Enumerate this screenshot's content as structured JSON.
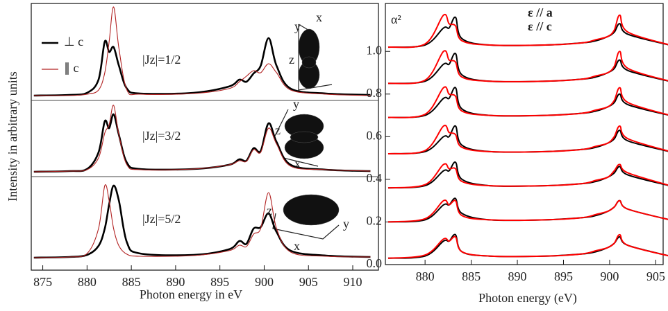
{
  "chart_data": [
    {
      "type": "line",
      "xlabel": "Photon energy in eV",
      "ylabel": "Intensity in arbitrary units",
      "xlim": [
        873.7,
        912.9
      ],
      "ylim": [
        0,
        3.85
      ],
      "xticks": [
        875,
        880,
        885,
        890,
        895,
        900,
        905,
        910
      ],
      "x": [
        874,
        878,
        880,
        881.3,
        882,
        882.5,
        883,
        883.6,
        884.5,
        886,
        892,
        896,
        897.2,
        898,
        898.8,
        899.6,
        900.5,
        901.4,
        903,
        907,
        912
      ],
      "series": [
        {
          "name": "⊥ c",
          "color": "#000000",
          "values": [
            [
              2.52,
              2.53,
              2.56,
              2.75,
              3.3,
              3.15,
              3.22,
              2.95,
              2.62,
              2.55,
              2.56,
              2.65,
              2.75,
              2.72,
              2.84,
              2.95,
              3.35,
              2.95,
              2.62,
              2.55,
              2.53
            ],
            [
              1.42,
              1.43,
              1.46,
              1.7,
              2.15,
              2.05,
              2.25,
              1.95,
              1.55,
              1.46,
              1.46,
              1.52,
              1.6,
              1.58,
              1.76,
              1.72,
              2.12,
              1.85,
              1.52,
              1.45,
              1.43
            ],
            [
              0.18,
              0.19,
              0.22,
              0.35,
              0.6,
              0.95,
              1.22,
              1.0,
              0.4,
              0.24,
              0.22,
              0.3,
              0.42,
              0.38,
              0.6,
              0.62,
              0.82,
              0.55,
              0.28,
              0.21,
              0.19
            ]
          ]
        },
        {
          "name": "∥ c",
          "color": "#b22222",
          "values": [
            [
              2.52,
              2.52,
              2.54,
              2.6,
              2.85,
              3.3,
              3.8,
              3.2,
              2.6,
              2.54,
              2.55,
              2.62,
              2.72,
              2.8,
              2.88,
              2.85,
              2.98,
              2.85,
              2.6,
              2.54,
              2.52
            ],
            [
              1.42,
              1.43,
              1.45,
              1.62,
              1.98,
              2.1,
              2.38,
              1.95,
              1.52,
              1.45,
              1.46,
              1.52,
              1.58,
              1.57,
              1.74,
              1.7,
              2.05,
              1.82,
              1.5,
              1.45,
              1.43
            ],
            [
              0.18,
              0.19,
              0.24,
              0.6,
              1.22,
              1.0,
              0.6,
              0.35,
              0.23,
              0.2,
              0.21,
              0.28,
              0.36,
              0.34,
              0.52,
              0.6,
              1.12,
              0.6,
              0.26,
              0.2,
              0.19
            ]
          ]
        }
      ],
      "annotations": [
        {
          "text": "|Jz|=1/2",
          "inset_labels": [
            "y",
            "x",
            "z"
          ]
        },
        {
          "text": "|Jz|=3/2",
          "inset_labels": [
            "y",
            "z",
            "x"
          ]
        },
        {
          "text": "|Jz|=5/2",
          "inset_labels": [
            "z",
            "x",
            "y"
          ]
        }
      ]
    },
    {
      "type": "line",
      "xlabel": "Photon energy (eV)",
      "ylabel": "α²",
      "xlim": [
        875.7,
        905.8
      ],
      "ylim": [
        0,
        1.225
      ],
      "xticks": [
        880,
        885,
        890,
        895,
        900,
        905
      ],
      "yticks": [
        {
          "value": 0,
          "label": "0.0"
        },
        {
          "value": 0.2,
          "label": "0.2"
        },
        {
          "value": 0.4,
          "label": "0.4"
        },
        {
          "value": 0.6,
          "label": "0.6"
        },
        {
          "value": 0.8,
          "label": "0.8"
        },
        {
          "value": 1.0,
          "label": "1.0"
        }
      ],
      "x": [
        876,
        880,
        882,
        882.6,
        883.3,
        884,
        887,
        893,
        897,
        898.5,
        899.8,
        900.5,
        901.1,
        902,
        907
      ],
      "series": [
        {
          "name": "ε // a",
          "color": "#000000",
          "values": [
            [
              1.02,
              1.03,
              1.11,
              1.11,
              1.16,
              1.06,
              1.03,
              1.03,
              1.04,
              1.05,
              1.07,
              1.09,
              1.13,
              1.08,
              1.025
            ],
            [
              0.85,
              0.86,
              0.94,
              0.94,
              0.99,
              0.89,
              0.86,
              0.86,
              0.87,
              0.88,
              0.9,
              0.92,
              0.96,
              0.91,
              0.855
            ],
            [
              0.69,
              0.7,
              0.78,
              0.78,
              0.83,
              0.73,
              0.7,
              0.7,
              0.71,
              0.72,
              0.74,
              0.76,
              0.8,
              0.75,
              0.695
            ],
            [
              0.52,
              0.53,
              0.6,
              0.6,
              0.65,
              0.56,
              0.53,
              0.53,
              0.54,
              0.55,
              0.57,
              0.59,
              0.63,
              0.58,
              0.525
            ],
            [
              0.36,
              0.37,
              0.44,
              0.44,
              0.48,
              0.4,
              0.37,
              0.37,
              0.38,
              0.39,
              0.41,
              0.43,
              0.46,
              0.42,
              0.365
            ],
            [
              0.2,
              0.21,
              0.28,
              0.28,
              0.31,
              0.24,
              0.21,
              0.21,
              0.22,
              0.23,
              0.25,
              0.27,
              0.3,
              0.26,
              0.205
            ],
            [
              0.03,
              0.04,
              0.11,
              0.11,
              0.14,
              0.06,
              0.04,
              0.04,
              0.05,
              0.06,
              0.08,
              0.1,
              0.13,
              0.09,
              0.035
            ]
          ]
        },
        {
          "name": "ε // c",
          "color": "#ff0000",
          "values": [
            [
              1.02,
              1.035,
              1.17,
              1.13,
              1.12,
              1.05,
              1.03,
              1.03,
              1.04,
              1.055,
              1.07,
              1.1,
              1.17,
              1.09,
              1.025
            ],
            [
              0.85,
              0.865,
              1.0,
              0.96,
              0.95,
              0.88,
              0.86,
              0.86,
              0.87,
              0.885,
              0.9,
              0.93,
              1.0,
              0.92,
              0.855
            ],
            [
              0.69,
              0.705,
              0.83,
              0.8,
              0.79,
              0.72,
              0.7,
              0.7,
              0.71,
              0.725,
              0.74,
              0.77,
              0.83,
              0.76,
              0.695
            ],
            [
              0.52,
              0.535,
              0.65,
              0.62,
              0.61,
              0.55,
              0.53,
              0.53,
              0.54,
              0.555,
              0.57,
              0.6,
              0.65,
              0.59,
              0.525
            ],
            [
              0.36,
              0.375,
              0.47,
              0.45,
              0.45,
              0.39,
              0.37,
              0.37,
              0.38,
              0.395,
              0.41,
              0.44,
              0.47,
              0.43,
              0.365
            ],
            [
              0.2,
              0.215,
              0.3,
              0.28,
              0.3,
              0.23,
              0.21,
              0.21,
              0.22,
              0.235,
              0.25,
              0.27,
              0.3,
              0.26,
              0.205
            ],
            [
              0.03,
              0.045,
              0.12,
              0.11,
              0.13,
              0.06,
              0.04,
              0.04,
              0.05,
              0.065,
              0.08,
              0.1,
              0.14,
              0.09,
              0.035
            ]
          ]
        }
      ]
    }
  ]
}
